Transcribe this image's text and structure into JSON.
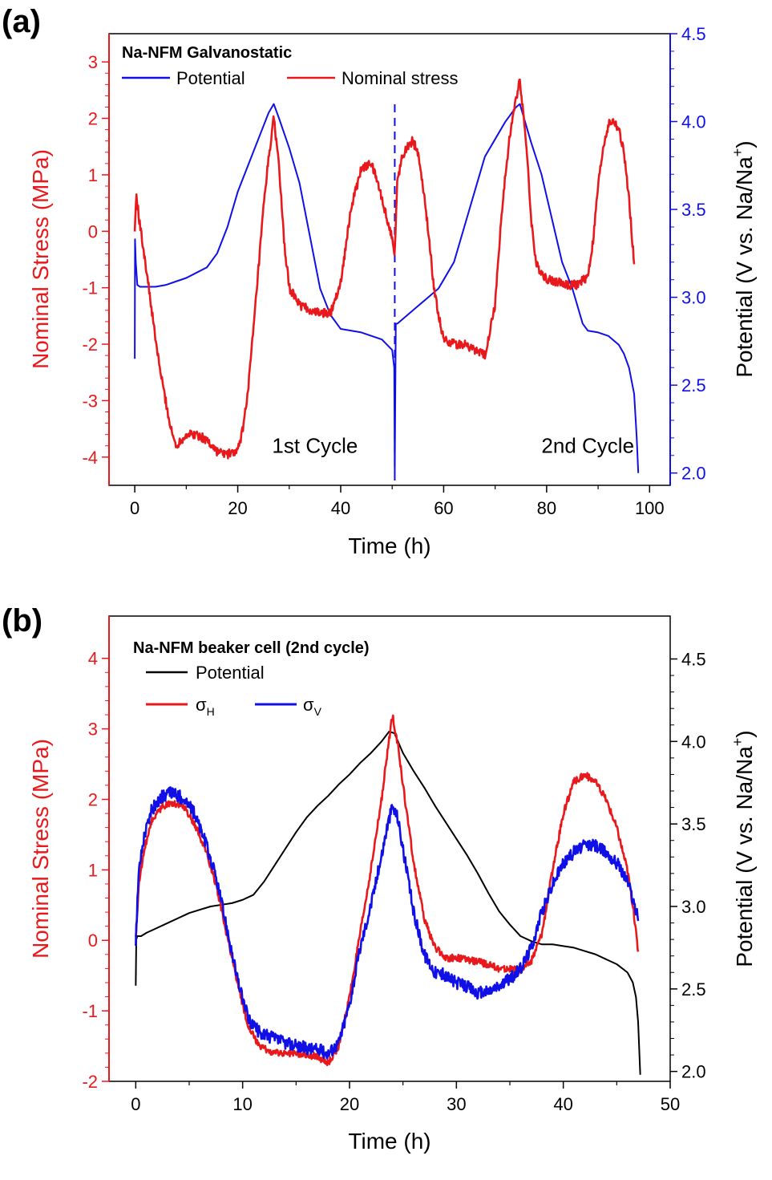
{
  "figure": {
    "panels": [
      "(a)",
      "(b)"
    ]
  },
  "chart_data": [
    {
      "type": "line",
      "panel_label": "(a)",
      "title": "Na-NFM Galvanostatic",
      "xlabel": "Time (h)",
      "ylabel_left": "Nominal Stress (MPa)",
      "ylabel_right_parts": [
        "Potential (V vs. Na/Na",
        "+",
        ")"
      ],
      "xlim": [
        -5,
        104
      ],
      "xticks": [
        0,
        20,
        40,
        60,
        80,
        100
      ],
      "ylim_left": [
        -4.5,
        3.5
      ],
      "yticks_left": [
        -4,
        -3,
        -2,
        -1,
        0,
        1,
        2,
        3
      ],
      "ylim_right": [
        1.93,
        4.5
      ],
      "yticks_right": [
        2.0,
        2.5,
        3.0,
        3.5,
        4.0,
        4.5
      ],
      "yticks_right_labels": [
        "2.0",
        "2.5",
        "3.0",
        "3.5",
        "4.0",
        "4.5"
      ],
      "legend_position": "top-left",
      "colors": {
        "left_axis": "#e8191c",
        "right_axis": "#1010e6",
        "nominal_stress": "#e8191c",
        "potential": "#1010e6"
      },
      "annotations": [
        {
          "text": "1st Cycle",
          "x": 35,
          "y": -3.8
        },
        {
          "text": "2nd Cycle",
          "x": 88,
          "y": -3.8
        }
      ],
      "vline": {
        "x": 50.5,
        "style": "dashed",
        "color": "#1010e6"
      },
      "series": [
        {
          "name": "Potential",
          "axis": "right",
          "noise": 0,
          "x": [
            0,
            0.05,
            0.2,
            0.5,
            1,
            2,
            4,
            6,
            8,
            10,
            12,
            14,
            16,
            18,
            20,
            22,
            24,
            26,
            27,
            28,
            30,
            32,
            34,
            36,
            38,
            40,
            44,
            48,
            50,
            50.4,
            50.5,
            50.7,
            51,
            53,
            55,
            57,
            59,
            60,
            62,
            64,
            66,
            68,
            70,
            72,
            74,
            74.8,
            75.5,
            77,
            79,
            81,
            83,
            85,
            87,
            88,
            90,
            92,
            94,
            95,
            96,
            97,
            97.5,
            97.8
          ],
          "y": [
            2.65,
            3.33,
            3.2,
            3.07,
            3.06,
            3.06,
            3.06,
            3.07,
            3.09,
            3.11,
            3.14,
            3.17,
            3.25,
            3.4,
            3.6,
            3.75,
            3.9,
            4.05,
            4.1,
            4.02,
            3.85,
            3.65,
            3.35,
            3.05,
            2.9,
            2.82,
            2.8,
            2.76,
            2.7,
            2.6,
            2.0,
            2.85,
            2.85,
            2.9,
            2.95,
            3.0,
            3.05,
            3.1,
            3.2,
            3.4,
            3.6,
            3.8,
            3.9,
            4.0,
            4.08,
            4.1,
            4.03,
            3.88,
            3.7,
            3.45,
            3.2,
            3.05,
            2.85,
            2.81,
            2.8,
            2.78,
            2.73,
            2.68,
            2.6,
            2.45,
            2.2,
            2.0
          ]
        },
        {
          "name": "Nominal stress",
          "axis": "left",
          "noise": 0.08,
          "x": [
            0,
            0.3,
            1,
            2,
            3,
            4,
            5,
            6,
            7,
            8,
            10,
            12,
            14,
            16,
            18,
            20,
            21,
            22,
            23,
            24,
            25,
            26,
            27,
            28,
            29,
            30,
            32,
            34,
            36,
            38,
            40,
            42,
            44,
            46,
            48,
            49,
            50,
            50.5,
            51,
            52,
            53,
            54,
            55,
            56,
            57,
            58,
            59,
            60,
            62,
            64,
            66,
            68,
            70,
            71,
            72,
            73,
            74,
            74.8,
            76,
            77,
            78,
            80,
            82,
            84,
            86,
            88,
            89,
            90,
            91,
            92,
            93,
            94,
            95,
            96,
            97
          ],
          "y": [
            0.0,
            0.65,
            0.1,
            -0.5,
            -1.2,
            -1.9,
            -2.5,
            -3.0,
            -3.5,
            -3.8,
            -3.6,
            -3.6,
            -3.7,
            -3.9,
            -3.95,
            -3.9,
            -3.5,
            -2.8,
            -1.8,
            -0.7,
            0.4,
            1.3,
            2.0,
            1.2,
            -0.2,
            -1.0,
            -1.3,
            -1.4,
            -1.45,
            -1.45,
            -0.9,
            0.4,
            1.1,
            1.2,
            0.6,
            0.2,
            -0.1,
            -0.4,
            0.9,
            1.35,
            1.5,
            1.6,
            1.4,
            0.8,
            0.0,
            -0.9,
            -1.5,
            -1.9,
            -2.0,
            -2.0,
            -2.1,
            -2.2,
            -1.3,
            0.0,
            1.0,
            1.8,
            2.3,
            2.7,
            1.6,
            0.2,
            -0.6,
            -0.85,
            -0.9,
            -0.95,
            -0.95,
            -0.8,
            -0.2,
            0.8,
            1.5,
            1.9,
            1.95,
            1.8,
            1.4,
            0.6,
            -0.6
          ]
        }
      ]
    },
    {
      "type": "line",
      "panel_label": "(b)",
      "title": "Na-NFM beaker cell (2nd cycle)",
      "xlabel": "Time (h)",
      "ylabel_left": "Nominal Stress (MPa)",
      "ylabel_right_parts": [
        "Potential (V vs. Na/Na",
        "+",
        ")"
      ],
      "xlim": [
        -2.5,
        50
      ],
      "xticks": [
        0,
        10,
        20,
        30,
        40,
        50
      ],
      "ylim_left": [
        -2,
        4.6
      ],
      "yticks_left": [
        -2,
        -1,
        0,
        1,
        2,
        3,
        4
      ],
      "ylim_right": [
        1.94,
        4.76
      ],
      "yticks_right": [
        2.0,
        2.5,
        3.0,
        3.5,
        4.0,
        4.5
      ],
      "yticks_right_labels": [
        "2.0",
        "2.5",
        "3.0",
        "3.5",
        "4.0",
        "4.5"
      ],
      "legend_position": "top-left",
      "colors": {
        "left_axis": "#e8191c",
        "right_axis": "#000000",
        "potential": "#000000",
        "sigma_h": "#e8191c",
        "sigma_v": "#1010e6"
      },
      "legend_sub": {
        "sigma": "σ",
        "h": "H",
        "v": "V"
      },
      "series": [
        {
          "name": "Potential",
          "axis": "right",
          "noise": 0,
          "x": [
            0,
            0.05,
            0.15,
            0.5,
            1,
            2,
            3,
            4,
            5,
            6,
            7,
            8,
            9,
            10,
            11,
            12,
            13,
            14,
            15,
            16,
            17,
            18,
            19,
            20,
            21,
            22,
            23,
            23.7,
            24.2,
            25,
            26,
            27,
            28,
            29,
            30,
            31,
            32,
            33,
            34,
            35,
            36,
            37,
            38,
            39,
            40,
            41,
            42,
            43,
            44,
            45,
            46,
            46.5,
            46.8,
            47,
            47.2
          ],
          "y": [
            2.52,
            2.8,
            2.82,
            2.82,
            2.84,
            2.87,
            2.9,
            2.93,
            2.96,
            2.98,
            3.0,
            3.01,
            3.02,
            3.04,
            3.07,
            3.15,
            3.25,
            3.35,
            3.45,
            3.54,
            3.61,
            3.67,
            3.74,
            3.8,
            3.87,
            3.93,
            4.0,
            4.06,
            4.05,
            3.93,
            3.82,
            3.72,
            3.61,
            3.51,
            3.41,
            3.31,
            3.2,
            3.08,
            2.97,
            2.89,
            2.82,
            2.79,
            2.77,
            2.77,
            2.76,
            2.75,
            2.73,
            2.71,
            2.68,
            2.65,
            2.6,
            2.54,
            2.45,
            2.3,
            1.98
          ]
        },
        {
          "name": "σH",
          "axis": "left",
          "noise": 0.05,
          "x": [
            0,
            0.3,
            0.8,
            1.5,
            2.5,
            3.5,
            4.5,
            5.5,
            6.5,
            7.5,
            8.5,
            9.5,
            10.5,
            11.5,
            13,
            15,
            17,
            18,
            19,
            20,
            21,
            22,
            23,
            23.5,
            24,
            24.5,
            25,
            26,
            27,
            28,
            29,
            30,
            32,
            34,
            36,
            37,
            38,
            39,
            40,
            41,
            42,
            43,
            44,
            45,
            46,
            46.5,
            47
          ],
          "y": [
            0.0,
            0.8,
            1.3,
            1.7,
            1.9,
            1.95,
            1.9,
            1.65,
            1.3,
            0.8,
            0.1,
            -0.6,
            -1.2,
            -1.5,
            -1.6,
            -1.6,
            -1.65,
            -1.75,
            -1.5,
            -0.8,
            0.1,
            1.0,
            2.0,
            2.6,
            3.2,
            2.8,
            2.2,
            1.1,
            0.3,
            -0.1,
            -0.25,
            -0.25,
            -0.3,
            -0.4,
            -0.42,
            -0.3,
            0.1,
            1.0,
            1.8,
            2.25,
            2.35,
            2.25,
            2.0,
            1.6,
            1.0,
            0.5,
            -0.15
          ]
        },
        {
          "name": "σV",
          "axis": "left",
          "noise": 0.09,
          "x": [
            0,
            0.3,
            0.8,
            1.5,
            2.5,
            3.5,
            4.5,
            5.5,
            6.5,
            7.5,
            8.5,
            9.5,
            10.5,
            11.5,
            13,
            15,
            17,
            18,
            19,
            20,
            21,
            22,
            23,
            23.5,
            24,
            24.5,
            25,
            26,
            27,
            28,
            29,
            30,
            31,
            32,
            33,
            34,
            35,
            36,
            37,
            38,
            39,
            40,
            41,
            42,
            43,
            44,
            45,
            46,
            46.5,
            47
          ],
          "y": [
            0.0,
            1.0,
            1.5,
            1.85,
            2.05,
            2.1,
            2.0,
            1.8,
            1.4,
            0.9,
            0.2,
            -0.55,
            -1.1,
            -1.3,
            -1.4,
            -1.5,
            -1.55,
            -1.6,
            -1.45,
            -0.9,
            -0.1,
            0.5,
            1.2,
            1.6,
            1.9,
            1.75,
            1.3,
            0.4,
            -0.2,
            -0.45,
            -0.5,
            -0.6,
            -0.65,
            -0.75,
            -0.72,
            -0.65,
            -0.55,
            -0.4,
            -0.1,
            0.4,
            0.8,
            1.1,
            1.25,
            1.35,
            1.35,
            1.25,
            1.1,
            0.85,
            0.6,
            0.3
          ]
        }
      ]
    }
  ]
}
